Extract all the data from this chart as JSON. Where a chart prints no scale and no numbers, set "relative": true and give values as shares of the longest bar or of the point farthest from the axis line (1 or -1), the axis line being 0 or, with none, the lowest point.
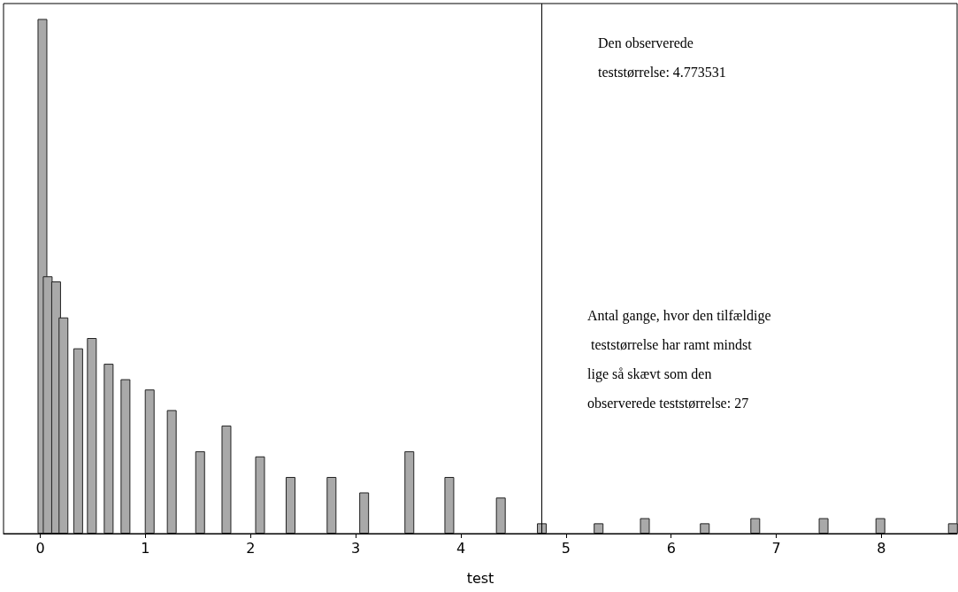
{
  "chart_data": {
    "type": "bar",
    "relative": true,
    "xlabel": "test",
    "x": [
      0.02,
      0.07,
      0.15,
      0.22,
      0.36,
      0.49,
      0.65,
      0.81,
      1.04,
      1.25,
      1.52,
      1.77,
      2.09,
      2.38,
      2.77,
      3.08,
      3.51,
      3.89,
      4.38,
      4.77,
      5.31,
      5.75,
      6.32,
      6.8,
      7.45,
      7.99,
      8.68
    ],
    "values": [
      1,
      0.5,
      0.49,
      0.42,
      0.36,
      0.38,
      0.33,
      0.3,
      0.28,
      0.24,
      0.16,
      0.21,
      0.15,
      0.11,
      0.11,
      0.08,
      0.16,
      0.11,
      0.07,
      0.02,
      0.02,
      0.03,
      0.02,
      0.03,
      0.03,
      0.03,
      0.02
    ],
    "color": "#a9a9a9",
    "xlim": [
      -0.35,
      8.72
    ],
    "xticks": [
      0,
      1,
      2,
      3,
      4,
      5,
      6,
      7,
      8
    ],
    "tick_labels": "x",
    "grid": false,
    "ref_lines": [
      {
        "axis": "x",
        "value": 4.773531,
        "color": "#000000"
      }
    ],
    "annotations": [
      "Den observerede teststørrelse: 4.773531",
      "Antal gange, hvor den tilfældige teststørrelse har ramt mindst lige så skævt som den observerede teststørrelse: 27"
    ]
  }
}
